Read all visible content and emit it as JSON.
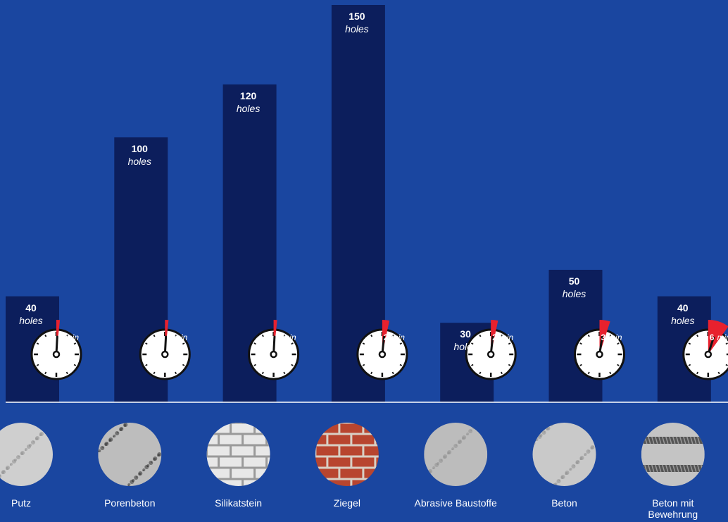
{
  "colors": {
    "background": "#1a46a0",
    "bar": "#0c1e5c",
    "baseline": "#ffffff",
    "timer_marker": "#e8212e",
    "text": "#ffffff"
  },
  "chart_data": {
    "type": "bar",
    "title": "",
    "xlabel": "",
    "ylabel": "",
    "ylim": [
      0,
      160
    ],
    "grid": false,
    "value_unit": "holes",
    "time_unit": "min",
    "categories": [
      "Putz",
      "Porenbeton",
      "Silikatstein",
      "Ziegel",
      "Abrasive Baustoffe",
      "Beton",
      "Beton mit Bewehrung"
    ],
    "category_label_lines": [
      [
        "Putz"
      ],
      [
        "Porenbeton"
      ],
      [
        "Silikatstein"
      ],
      [
        "Ziegel"
      ],
      [
        "Abrasive Baustoffe"
      ],
      [
        "Beton"
      ],
      [
        "Beton mit",
        "Bewehrung"
      ]
    ],
    "values": [
      40,
      100,
      120,
      150,
      30,
      50,
      40
    ],
    "times_min": [
      1,
      1,
      1,
      2,
      2,
      3,
      6
    ],
    "materials": [
      "plaster-texture",
      "aerated-concrete-texture",
      "sand-lime-brick-texture",
      "red-brick-texture",
      "abrasive-material-texture",
      "concrete-texture",
      "reinforced-concrete-texture"
    ]
  }
}
